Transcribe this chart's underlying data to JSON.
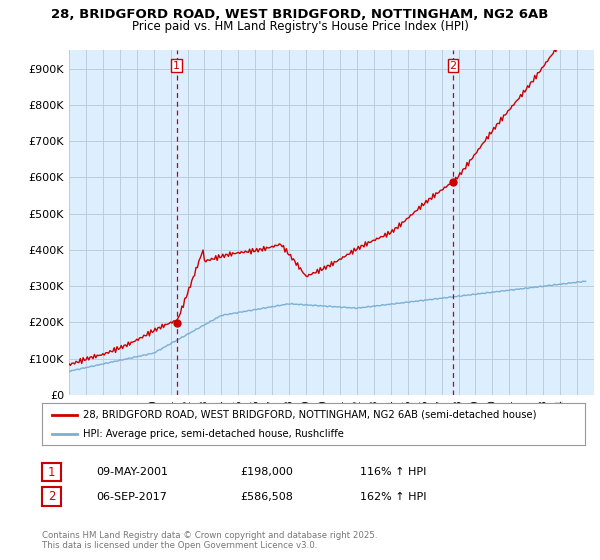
{
  "title": "28, BRIDGFORD ROAD, WEST BRIDGFORD, NOTTINGHAM, NG2 6AB",
  "subtitle": "Price paid vs. HM Land Registry's House Price Index (HPI)",
  "ylim": [
    0,
    950000
  ],
  "yticks": [
    0,
    100000,
    200000,
    300000,
    400000,
    500000,
    600000,
    700000,
    800000,
    900000
  ],
  "ytick_labels": [
    "£0",
    "£100K",
    "£200K",
    "£300K",
    "£400K",
    "£500K",
    "£600K",
    "£700K",
    "£800K",
    "£900K"
  ],
  "sale1_year": 2001.35,
  "sale1_price": 198000,
  "sale2_year": 2017.68,
  "sale2_price": 586508,
  "line_color_red": "#cc0000",
  "line_color_blue": "#7bafd4",
  "vline_color": "#cc0000",
  "background_color": "#ffffff",
  "plot_bg_color": "#ddeeff",
  "grid_color": "#bbccdd",
  "legend_label_red": "28, BRIDGFORD ROAD, WEST BRIDGFORD, NOTTINGHAM, NG2 6AB (semi-detached house)",
  "legend_label_blue": "HPI: Average price, semi-detached house, Rushcliffe",
  "sale1_date": "09-MAY-2001",
  "sale1_pct": "116% ↑ HPI",
  "sale2_date": "06-SEP-2017",
  "sale2_pct": "162% ↑ HPI",
  "footer": "Contains HM Land Registry data © Crown copyright and database right 2025.\nThis data is licensed under the Open Government Licence v3.0.",
  "xmin": 1995,
  "xmax": 2026
}
